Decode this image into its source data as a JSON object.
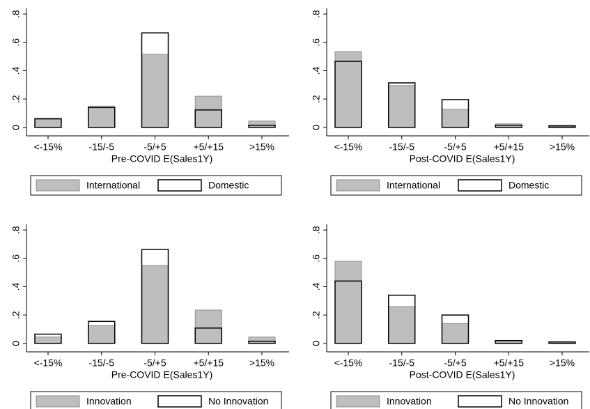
{
  "chart_data": [
    {
      "type": "bar",
      "x_label": "Pre-COVID E(Sales1Y)",
      "categories": [
        "<-15%",
        "-15/-5",
        "-5/+5",
        "+5/+15",
        ">15%"
      ],
      "series": [
        {
          "name": "International",
          "color": "#bebebe",
          "style": "fill",
          "values": [
            0.065,
            0.15,
            0.515,
            0.22,
            0.045
          ]
        },
        {
          "name": "Domestic",
          "color": "#000000",
          "style": "outline",
          "values": [
            0.06,
            0.14,
            0.667,
            0.123,
            0.015
          ]
        }
      ],
      "ylim": [
        -0.06,
        0.84
      ],
      "yticks": [
        0,
        {
          "value": 0.2,
          "label": ".2"
        },
        {
          "value": 0.4,
          "label": ".4"
        },
        {
          "value": 0.6,
          "label": ".6"
        },
        {
          "value": 0.8,
          "label": ".8"
        }
      ]
    },
    {
      "type": "bar",
      "x_label": "Post-COVID E(Sales1Y)",
      "categories": [
        "<-15%",
        "-15/-5",
        "-5/+5",
        "+5/+15",
        ">15%"
      ],
      "series": [
        {
          "name": "International",
          "color": "#bebebe",
          "style": "fill",
          "values": [
            0.535,
            0.295,
            0.128,
            0.025,
            0.015
          ]
        },
        {
          "name": "Domestic",
          "color": "#000000",
          "style": "outline",
          "values": [
            0.466,
            0.314,
            0.196,
            0.015,
            0.01
          ]
        }
      ],
      "ylim": [
        -0.06,
        0.84
      ],
      "yticks": [
        0,
        {
          "value": 0.2,
          "label": ".2"
        },
        {
          "value": 0.4,
          "label": ".4"
        },
        {
          "value": 0.6,
          "label": ".6"
        },
        {
          "value": 0.8,
          "label": ".8"
        }
      ]
    },
    {
      "type": "bar",
      "x_label": "Pre-COVID E(Sales1Y)",
      "categories": [
        "<-15%",
        "-15/-5",
        "-5/+5",
        "+5/+15",
        ">15%"
      ],
      "series": [
        {
          "name": "Innovation",
          "color": "#bebebe",
          "style": "fill",
          "values": [
            0.045,
            0.125,
            0.55,
            0.235,
            0.045
          ]
        },
        {
          "name": "No Innovation",
          "color": "#000000",
          "style": "outline",
          "values": [
            0.065,
            0.155,
            0.663,
            0.108,
            0.015
          ]
        }
      ],
      "ylim": [
        -0.06,
        0.84
      ],
      "yticks": [
        0,
        {
          "value": 0.2,
          "label": ".2"
        },
        {
          "value": 0.4,
          "label": ".4"
        },
        {
          "value": 0.6,
          "label": ".6"
        },
        {
          "value": 0.8,
          "label": ".8"
        }
      ]
    },
    {
      "type": "bar",
      "x_label": "Post-COVID E(Sales1Y)",
      "categories": [
        "<-15%",
        "-15/-5",
        "-5/+5",
        "+5/+15",
        ">15%"
      ],
      "series": [
        {
          "name": "Innovation",
          "color": "#bebebe",
          "style": "fill",
          "values": [
            0.58,
            0.26,
            0.14,
            0.015,
            0.01
          ]
        },
        {
          "name": "No Innovation",
          "color": "#000000",
          "style": "outline",
          "values": [
            0.44,
            0.34,
            0.2,
            0.02,
            0.01
          ]
        }
      ],
      "ylim": [
        -0.06,
        0.84
      ],
      "yticks": [
        0,
        {
          "value": 0.2,
          "label": ".2"
        },
        {
          "value": 0.4,
          "label": ".4"
        },
        {
          "value": 0.6,
          "label": ".6"
        },
        {
          "value": 0.8,
          "label": ".8"
        }
      ]
    }
  ]
}
